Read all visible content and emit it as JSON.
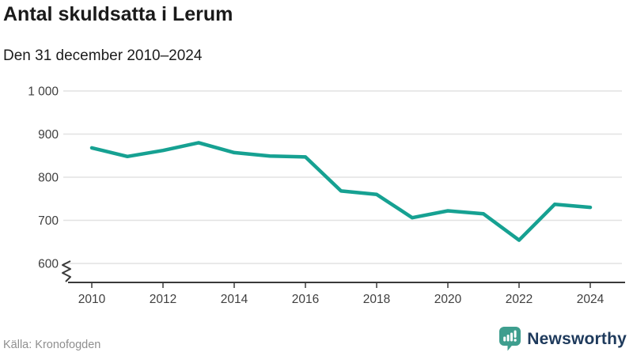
{
  "header": {
    "title": "Antal skuldsatta i Lerum",
    "subtitle": "Den 31 december 2010–2024"
  },
  "footer": {
    "source": "Källa: Kronofogden",
    "brand": "Newsworthy"
  },
  "colors": {
    "line": "#16a192",
    "grid": "#e2e2e2",
    "axis": "#3a3a3a",
    "tick_label": "#3f3f3f",
    "title": "#1a1a1a",
    "source_text": "#8f8f8f",
    "brand_text": "#1e3a5c",
    "brand_icon": "#3e9e8e"
  },
  "chart_data": {
    "type": "line",
    "title": "Antal skuldsatta i Lerum",
    "subtitle": "Den 31 december 2010–2024",
    "x": [
      2010,
      2011,
      2012,
      2013,
      2014,
      2015,
      2016,
      2017,
      2018,
      2019,
      2020,
      2021,
      2022,
      2023,
      2024
    ],
    "series": [
      {
        "name": "Antal skuldsatta",
        "values": [
          868,
          848,
          862,
          880,
          857,
          849,
          847,
          768,
          760,
          706,
          722,
          715,
          654,
          737,
          730
        ]
      }
    ],
    "xlabel": "",
    "ylabel": "",
    "ylim": [
      600,
      1000
    ],
    "yticks": [
      600,
      700,
      800,
      900,
      1000
    ],
    "xticks": [
      2010,
      2012,
      2014,
      2016,
      2018,
      2020,
      2022,
      2024
    ],
    "grid": true,
    "axis_break": true,
    "legend": "none",
    "source": "Källa: Kronofogden"
  }
}
